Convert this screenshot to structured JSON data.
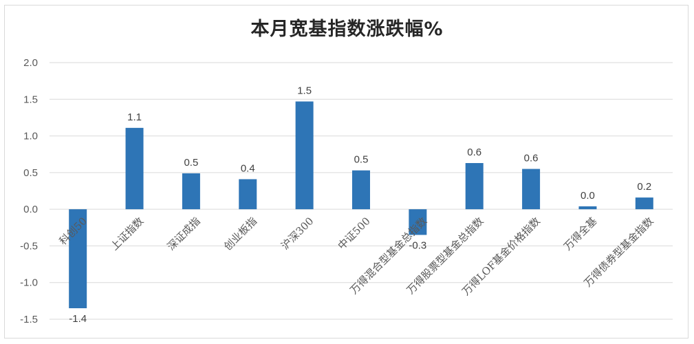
{
  "chart_data": {
    "type": "bar",
    "title": "本月宽基指数涨跌幅%",
    "xlabel": "",
    "ylabel": "",
    "categories": [
      "科创50",
      "上证指数",
      "深证成指",
      "创业板指",
      "沪深300",
      "中证500",
      "万得混合型基金总指数",
      "万得股票型基金总指数",
      "万得LOF基金价格指数",
      "万得全基",
      "万得债券型基金指数"
    ],
    "values": [
      -1.35,
      1.11,
      0.49,
      0.41,
      1.47,
      0.53,
      -0.35,
      0.63,
      0.55,
      0.04,
      0.16
    ],
    "data_labels": [
      "-1.4",
      "1.1",
      "0.5",
      "0.4",
      "1.5",
      "0.5",
      "-0.3",
      "0.6",
      "0.6",
      "0.0",
      "0.2"
    ],
    "ylim": [
      -1.5,
      2.0
    ],
    "yticks": [
      "2.0",
      "1.5",
      "1.0",
      "0.5",
      "0.0",
      "-0.5",
      "-1.0",
      "-1.5"
    ],
    "ytick_values": [
      2.0,
      1.5,
      1.0,
      0.5,
      0.0,
      -0.5,
      -1.0,
      -1.5
    ],
    "grid": true,
    "legend": "none",
    "bar_color": "#2e75b6",
    "grid_color": "#d9d9d9"
  }
}
